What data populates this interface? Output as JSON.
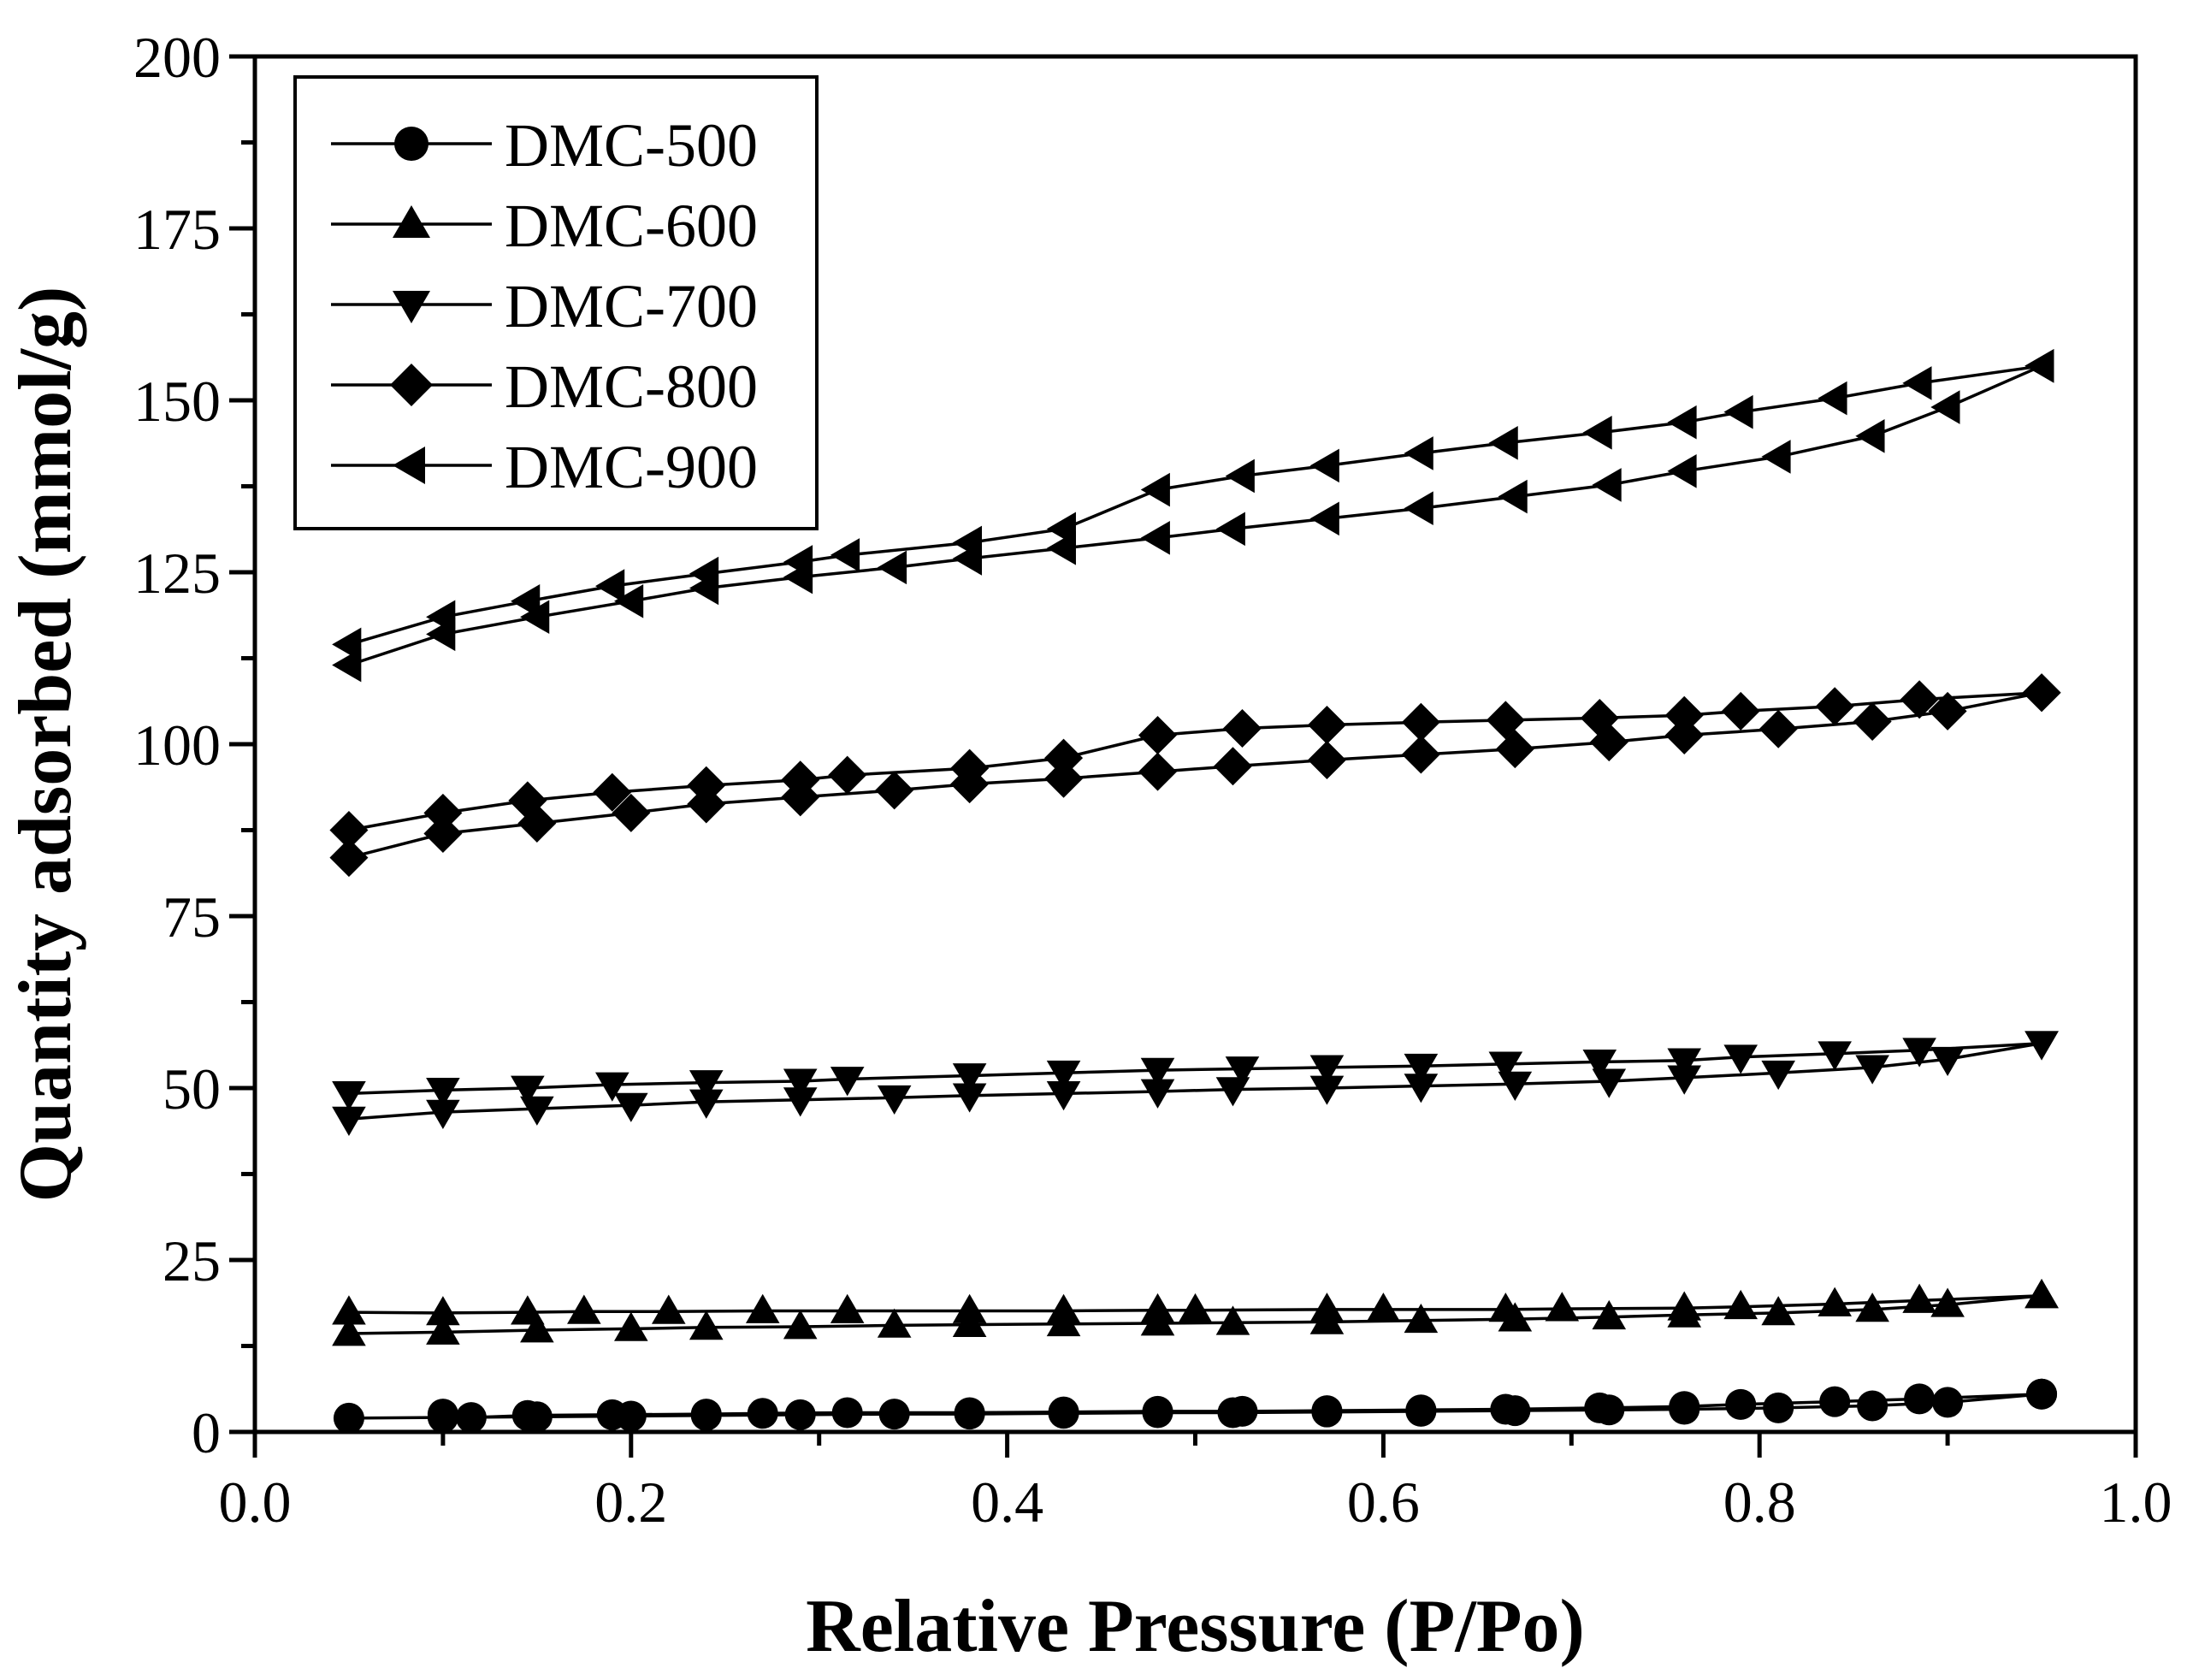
{
  "chart_data": {
    "type": "line",
    "xlabel": "Relative Pressure (P/Po)",
    "ylabel": "Quantity adsorbed (mmol/g)",
    "xlim": [
      0.0,
      1.0
    ],
    "ylim": [
      0,
      200
    ],
    "xticks": [
      "0.0",
      "0.2",
      "0.4",
      "0.6",
      "0.8",
      "1.0"
    ],
    "yticks": [
      "0",
      "25",
      "50",
      "75",
      "100",
      "125",
      "150",
      "175",
      "200"
    ],
    "legend_position": "top-left",
    "series": [
      {
        "name": "DMC-500",
        "marker": "circle",
        "adsorption": {
          "x": [
            0.05,
            0.1,
            0.15,
            0.2,
            0.24,
            0.29,
            0.34,
            0.38,
            0.43,
            0.48,
            0.52,
            0.57,
            0.62,
            0.67,
            0.72,
            0.76,
            0.81,
            0.86,
            0.9,
            0.95
          ],
          "y": [
            2.0,
            2.1,
            2.2,
            2.3,
            2.4,
            2.5,
            2.6,
            2.6,
            2.7,
            2.8,
            2.8,
            2.9,
            3.0,
            3.1,
            3.2,
            3.3,
            3.5,
            3.8,
            4.3,
            5.5
          ]
        },
        "desorption": {
          "x": [
            0.95,
            0.885,
            0.84,
            0.79,
            0.76,
            0.715,
            0.665,
            0.62,
            0.57,
            0.525,
            0.48,
            0.43,
            0.38,
            0.315,
            0.27,
            0.24,
            0.19,
            0.145,
            0.115,
            0.1
          ],
          "y": [
            5.5,
            4.8,
            4.4,
            4.0,
            3.7,
            3.5,
            3.3,
            3.2,
            3.1,
            3.0,
            3.0,
            2.9,
            2.8,
            2.8,
            2.7,
            2.6,
            2.5,
            2.4,
            2.1,
            2.6
          ]
        }
      },
      {
        "name": "DMC-600",
        "marker": "triangle-up",
        "adsorption": {
          "x": [
            0.05,
            0.1,
            0.15,
            0.2,
            0.24,
            0.29,
            0.34,
            0.38,
            0.43,
            0.48,
            0.52,
            0.57,
            0.62,
            0.67,
            0.72,
            0.76,
            0.81,
            0.86,
            0.9,
            0.95
          ],
          "y": [
            14.3,
            14.5,
            14.8,
            15.0,
            15.2,
            15.3,
            15.5,
            15.6,
            15.7,
            15.8,
            15.9,
            16.0,
            16.2,
            16.4,
            16.7,
            17.0,
            17.3,
            17.8,
            18.5,
            19.8
          ]
        },
        "desorption": {
          "x": [
            0.95,
            0.885,
            0.84,
            0.79,
            0.76,
            0.695,
            0.665,
            0.6,
            0.57,
            0.5,
            0.48,
            0.43,
            0.38,
            0.315,
            0.27,
            0.22,
            0.175,
            0.145,
            0.1,
            0.05
          ],
          "y": [
            19.8,
            19.1,
            18.6,
            18.2,
            18.0,
            17.9,
            17.8,
            17.8,
            17.8,
            17.7,
            17.7,
            17.6,
            17.6,
            17.6,
            17.6,
            17.5,
            17.5,
            17.4,
            17.3,
            17.4
          ]
        }
      },
      {
        "name": "DMC-700",
        "marker": "triangle-down",
        "adsorption": {
          "x": [
            0.05,
            0.1,
            0.15,
            0.2,
            0.24,
            0.29,
            0.34,
            0.38,
            0.43,
            0.48,
            0.52,
            0.57,
            0.62,
            0.67,
            0.72,
            0.76,
            0.81,
            0.86,
            0.9,
            0.95
          ],
          "y": [
            45.5,
            46.5,
            47.0,
            47.5,
            48.0,
            48.3,
            48.6,
            48.9,
            49.2,
            49.5,
            49.8,
            50.0,
            50.3,
            50.6,
            51.0,
            51.5,
            52.2,
            53.0,
            54.2,
            56.5
          ]
        },
        "desorption": {
          "x": [
            0.95,
            0.885,
            0.84,
            0.79,
            0.76,
            0.715,
            0.665,
            0.62,
            0.57,
            0.525,
            0.48,
            0.43,
            0.38,
            0.315,
            0.29,
            0.24,
            0.19,
            0.145,
            0.1,
            0.05
          ],
          "y": [
            56.5,
            55.5,
            55.0,
            54.5,
            54.0,
            53.8,
            53.5,
            53.2,
            53.0,
            52.8,
            52.6,
            52.2,
            51.8,
            51.3,
            51.0,
            50.8,
            50.5,
            50.0,
            49.7,
            49.2
          ]
        }
      },
      {
        "name": "DMC-800",
        "marker": "diamond",
        "adsorption": {
          "x": [
            0.05,
            0.1,
            0.15,
            0.2,
            0.24,
            0.29,
            0.34,
            0.38,
            0.43,
            0.48,
            0.52,
            0.57,
            0.62,
            0.67,
            0.72,
            0.76,
            0.81,
            0.86,
            0.9,
            0.95
          ],
          "y": [
            83.5,
            87.0,
            88.5,
            90.0,
            91.3,
            92.3,
            93.3,
            94.2,
            95.0,
            96.0,
            96.8,
            97.7,
            98.5,
            99.3,
            100.3,
            101.3,
            102.2,
            103.3,
            104.8,
            107.5
          ]
        },
        "desorption": {
          "x": [
            0.95,
            0.885,
            0.84,
            0.79,
            0.76,
            0.715,
            0.665,
            0.62,
            0.57,
            0.525,
            0.48,
            0.43,
            0.38,
            0.315,
            0.29,
            0.24,
            0.19,
            0.145,
            0.1,
            0.05
          ],
          "y": [
            107.5,
            106.5,
            105.5,
            104.8,
            104.2,
            103.8,
            103.5,
            103.2,
            102.8,
            102.3,
            101.3,
            98.0,
            96.5,
            95.5,
            94.8,
            94.0,
            93.0,
            91.8,
            90.0,
            87.5
          ]
        }
      },
      {
        "name": "DMC-900",
        "marker": "triangle-left",
        "adsorption": {
          "x": [
            0.05,
            0.1,
            0.15,
            0.2,
            0.24,
            0.29,
            0.34,
            0.38,
            0.43,
            0.48,
            0.52,
            0.57,
            0.62,
            0.67,
            0.72,
            0.76,
            0.81,
            0.86,
            0.9,
            0.95
          ],
          "y": [
            111.5,
            116.0,
            118.5,
            120.8,
            122.7,
            124.3,
            125.7,
            127.0,
            128.5,
            130.0,
            131.3,
            132.8,
            134.3,
            136.0,
            137.7,
            139.7,
            141.8,
            144.8,
            149.0,
            155.0
          ]
        },
        "desorption": {
          "x": [
            0.95,
            0.885,
            0.84,
            0.79,
            0.76,
            0.715,
            0.665,
            0.62,
            0.57,
            0.525,
            0.48,
            0.43,
            0.38,
            0.315,
            0.29,
            0.24,
            0.19,
            0.145,
            0.1,
            0.05
          ],
          "y": [
            155.0,
            152.5,
            150.3,
            148.3,
            146.8,
            145.3,
            143.8,
            142.3,
            140.5,
            139.0,
            137.0,
            131.3,
            129.3,
            127.5,
            126.5,
            124.8,
            123.0,
            120.8,
            118.5,
            114.5
          ]
        }
      }
    ]
  }
}
